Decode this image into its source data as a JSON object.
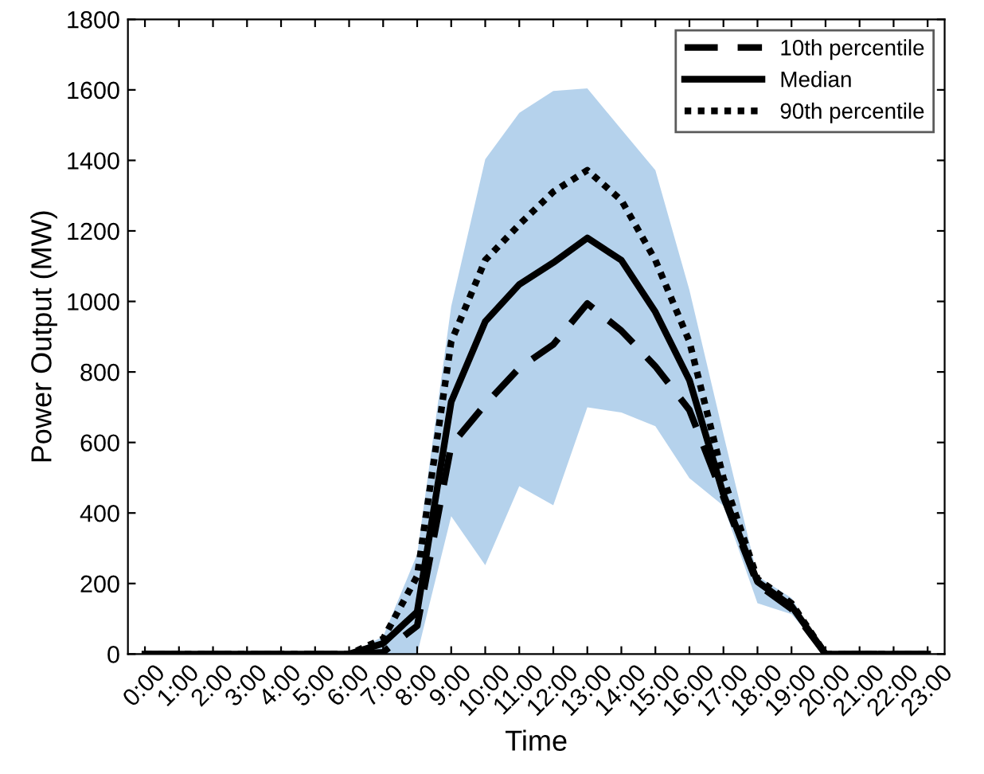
{
  "chart_data": {
    "type": "line",
    "xlabel": "Time",
    "ylabel": "Power Output (MW)",
    "categories": [
      "0:00",
      "1:00",
      "2:00",
      "3:00",
      "4:00",
      "5:00",
      "6:00",
      "7:00",
      "8:00",
      "9:00",
      "10:00",
      "11:00",
      "12:00",
      "13:00",
      "14:00",
      "15:00",
      "16:00",
      "17:00",
      "18:00",
      "19:00",
      "20:00",
      "21:00",
      "22:00",
      "23:00"
    ],
    "series": [
      {
        "name": "10th percentile",
        "color": "#000000",
        "line_style": "dashed",
        "values": [
          0,
          0,
          0,
          0,
          0,
          0,
          0,
          5,
          80,
          592,
          708,
          811,
          878,
          994,
          917,
          816,
          692,
          445,
          198,
          128,
          0,
          0,
          0,
          0
        ]
      },
      {
        "name": "Median",
        "color": "#000000",
        "line_style": "solid",
        "values": [
          0,
          0,
          0,
          0,
          0,
          0,
          0,
          30,
          120,
          715,
          943,
          1048,
          1110,
          1180,
          1117,
          970,
          777,
          453,
          205,
          136,
          0,
          0,
          0,
          0
        ],
        "lower": [
          0,
          0,
          0,
          0,
          0,
          0,
          0,
          0,
          0,
          391,
          252,
          476,
          422,
          700,
          685,
          646,
          499,
          420,
          144,
          113,
          0,
          0,
          0,
          0
        ],
        "upper": [
          0,
          0,
          0,
          0,
          0,
          0,
          0,
          50,
          283,
          986,
          1403,
          1535,
          1597,
          1604,
          1488,
          1372,
          1032,
          623,
          221,
          159,
          0,
          0,
          0,
          0
        ]
      },
      {
        "name": "90th percentile",
        "color": "#000000",
        "line_style": "dotted",
        "values": [
          0,
          0,
          0,
          0,
          0,
          0,
          0,
          43,
          221,
          886,
          1117,
          1218,
          1311,
          1372,
          1287,
          1117,
          886,
          499,
          213,
          144,
          0,
          0,
          0,
          0
        ]
      }
    ],
    "ylim": [
      0,
      1800
    ],
    "yticks": [
      0,
      200,
      400,
      600,
      800,
      1000,
      1200,
      1400,
      1600,
      1800
    ],
    "legend": "top right",
    "grid": false,
    "marker": "none"
  }
}
